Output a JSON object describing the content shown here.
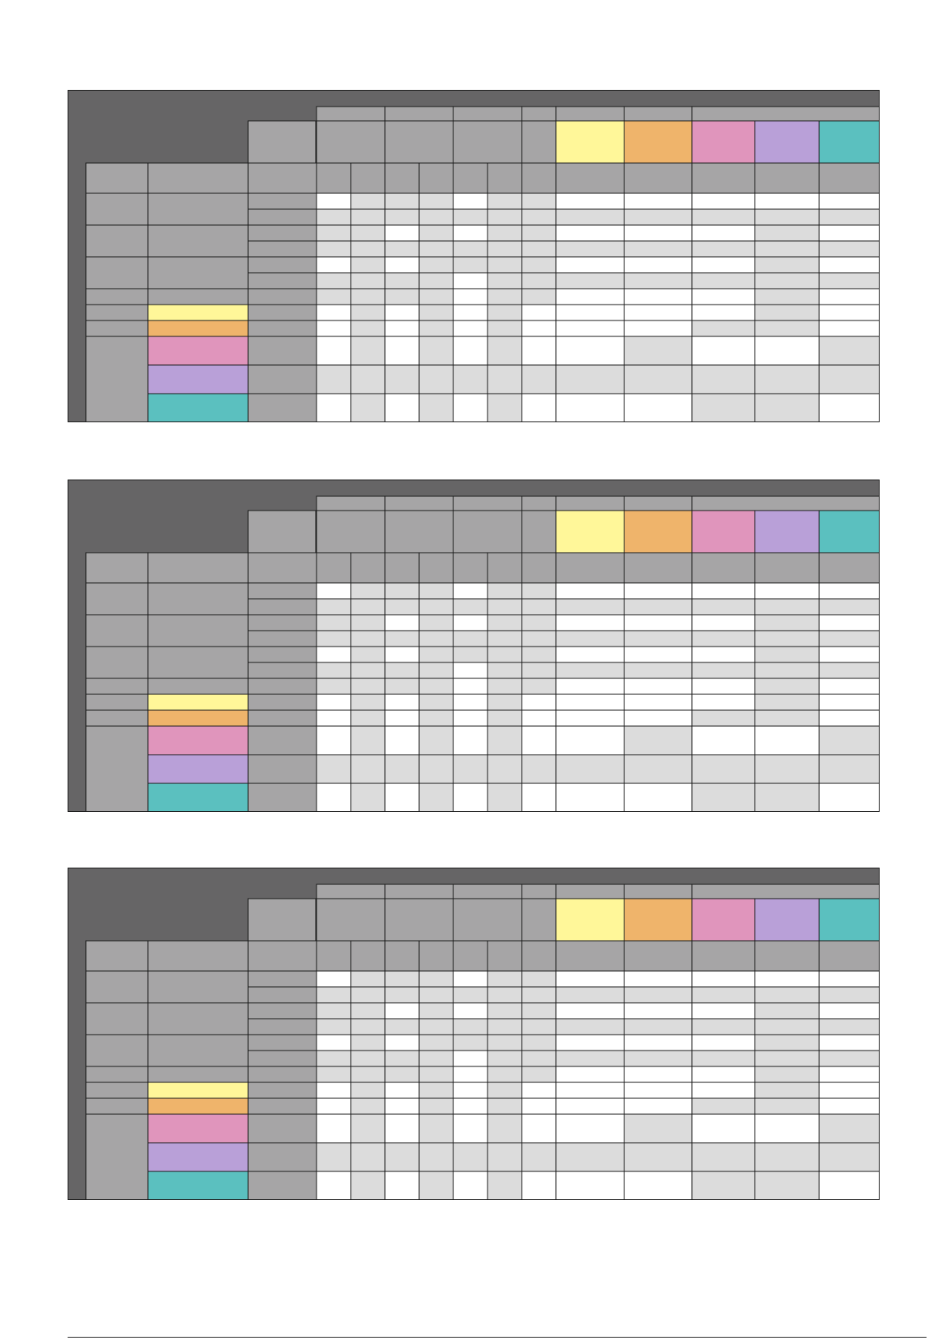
{
  "document": {
    "tables": [
      {
        "id": "table-1"
      },
      {
        "id": "table-2"
      },
      {
        "id": "table-3"
      }
    ]
  },
  "palette": {
    "header_dark": "#666566",
    "header_gray": "#a6a5a6",
    "cell_white": "#ffffff",
    "cell_light": "#dcdcdc",
    "yellow": "#fff799",
    "orange": "#efb46b",
    "pink": "#e095bc",
    "purple": "#b9a0d8",
    "teal": "#5bc0bf"
  },
  "matrix": {
    "value_columns": 12,
    "color_columns": [
      "yellow",
      "orange",
      "pink",
      "purple",
      "teal"
    ],
    "row_groups": [
      {
        "rows": 2,
        "kind": "gray"
      },
      {
        "rows": 2,
        "kind": "gray"
      },
      {
        "rows": 2,
        "kind": "gray"
      },
      {
        "rows": 1,
        "kind": "gray"
      },
      {
        "rows": 1,
        "kind": "yellow"
      },
      {
        "rows": 1,
        "kind": "orange"
      },
      {
        "rows": 3,
        "kind": "colored-triple",
        "colors": [
          "pink",
          "purple",
          "teal"
        ]
      }
    ],
    "cell_pattern": [
      [
        "w",
        "l",
        "l",
        "l",
        "w",
        "l",
        "l",
        "w",
        "w",
        "w",
        "w",
        "w"
      ],
      [
        "l",
        "l",
        "l",
        "l",
        "l",
        "l",
        "l",
        "l",
        "l",
        "l",
        "l",
        "l"
      ],
      [
        "l",
        "l",
        "w",
        "l",
        "w",
        "l",
        "l",
        "w",
        "w",
        "w",
        "l",
        "w"
      ],
      [
        "l",
        "l",
        "l",
        "l",
        "l",
        "l",
        "l",
        "l",
        "l",
        "l",
        "l",
        "l"
      ],
      [
        "w",
        "l",
        "w",
        "l",
        "l",
        "l",
        "l",
        "w",
        "w",
        "w",
        "l",
        "w"
      ],
      [
        "l",
        "l",
        "l",
        "l",
        "w",
        "l",
        "l",
        "l",
        "l",
        "l",
        "l",
        "l"
      ],
      [
        "l",
        "l",
        "l",
        "l",
        "w",
        "l",
        "l",
        "w",
        "w",
        "w",
        "l",
        "w"
      ],
      [
        "w",
        "l",
        "w",
        "l",
        "w",
        "l",
        "w",
        "w",
        "w",
        "w",
        "l",
        "w"
      ],
      [
        "w",
        "l",
        "w",
        "l",
        "w",
        "l",
        "w",
        "w",
        "w",
        "l",
        "l",
        "w"
      ],
      [
        "w",
        "l",
        "w",
        "l",
        "w",
        "l",
        "w",
        "w",
        "l",
        "w",
        "w",
        "l"
      ],
      [
        "l",
        "l",
        "l",
        "l",
        "l",
        "l",
        "l",
        "l",
        "l",
        "l",
        "l",
        "l"
      ],
      [
        "w",
        "l",
        "w",
        "l",
        "w",
        "l",
        "w",
        "w",
        "w",
        "l",
        "l",
        "w"
      ]
    ]
  }
}
